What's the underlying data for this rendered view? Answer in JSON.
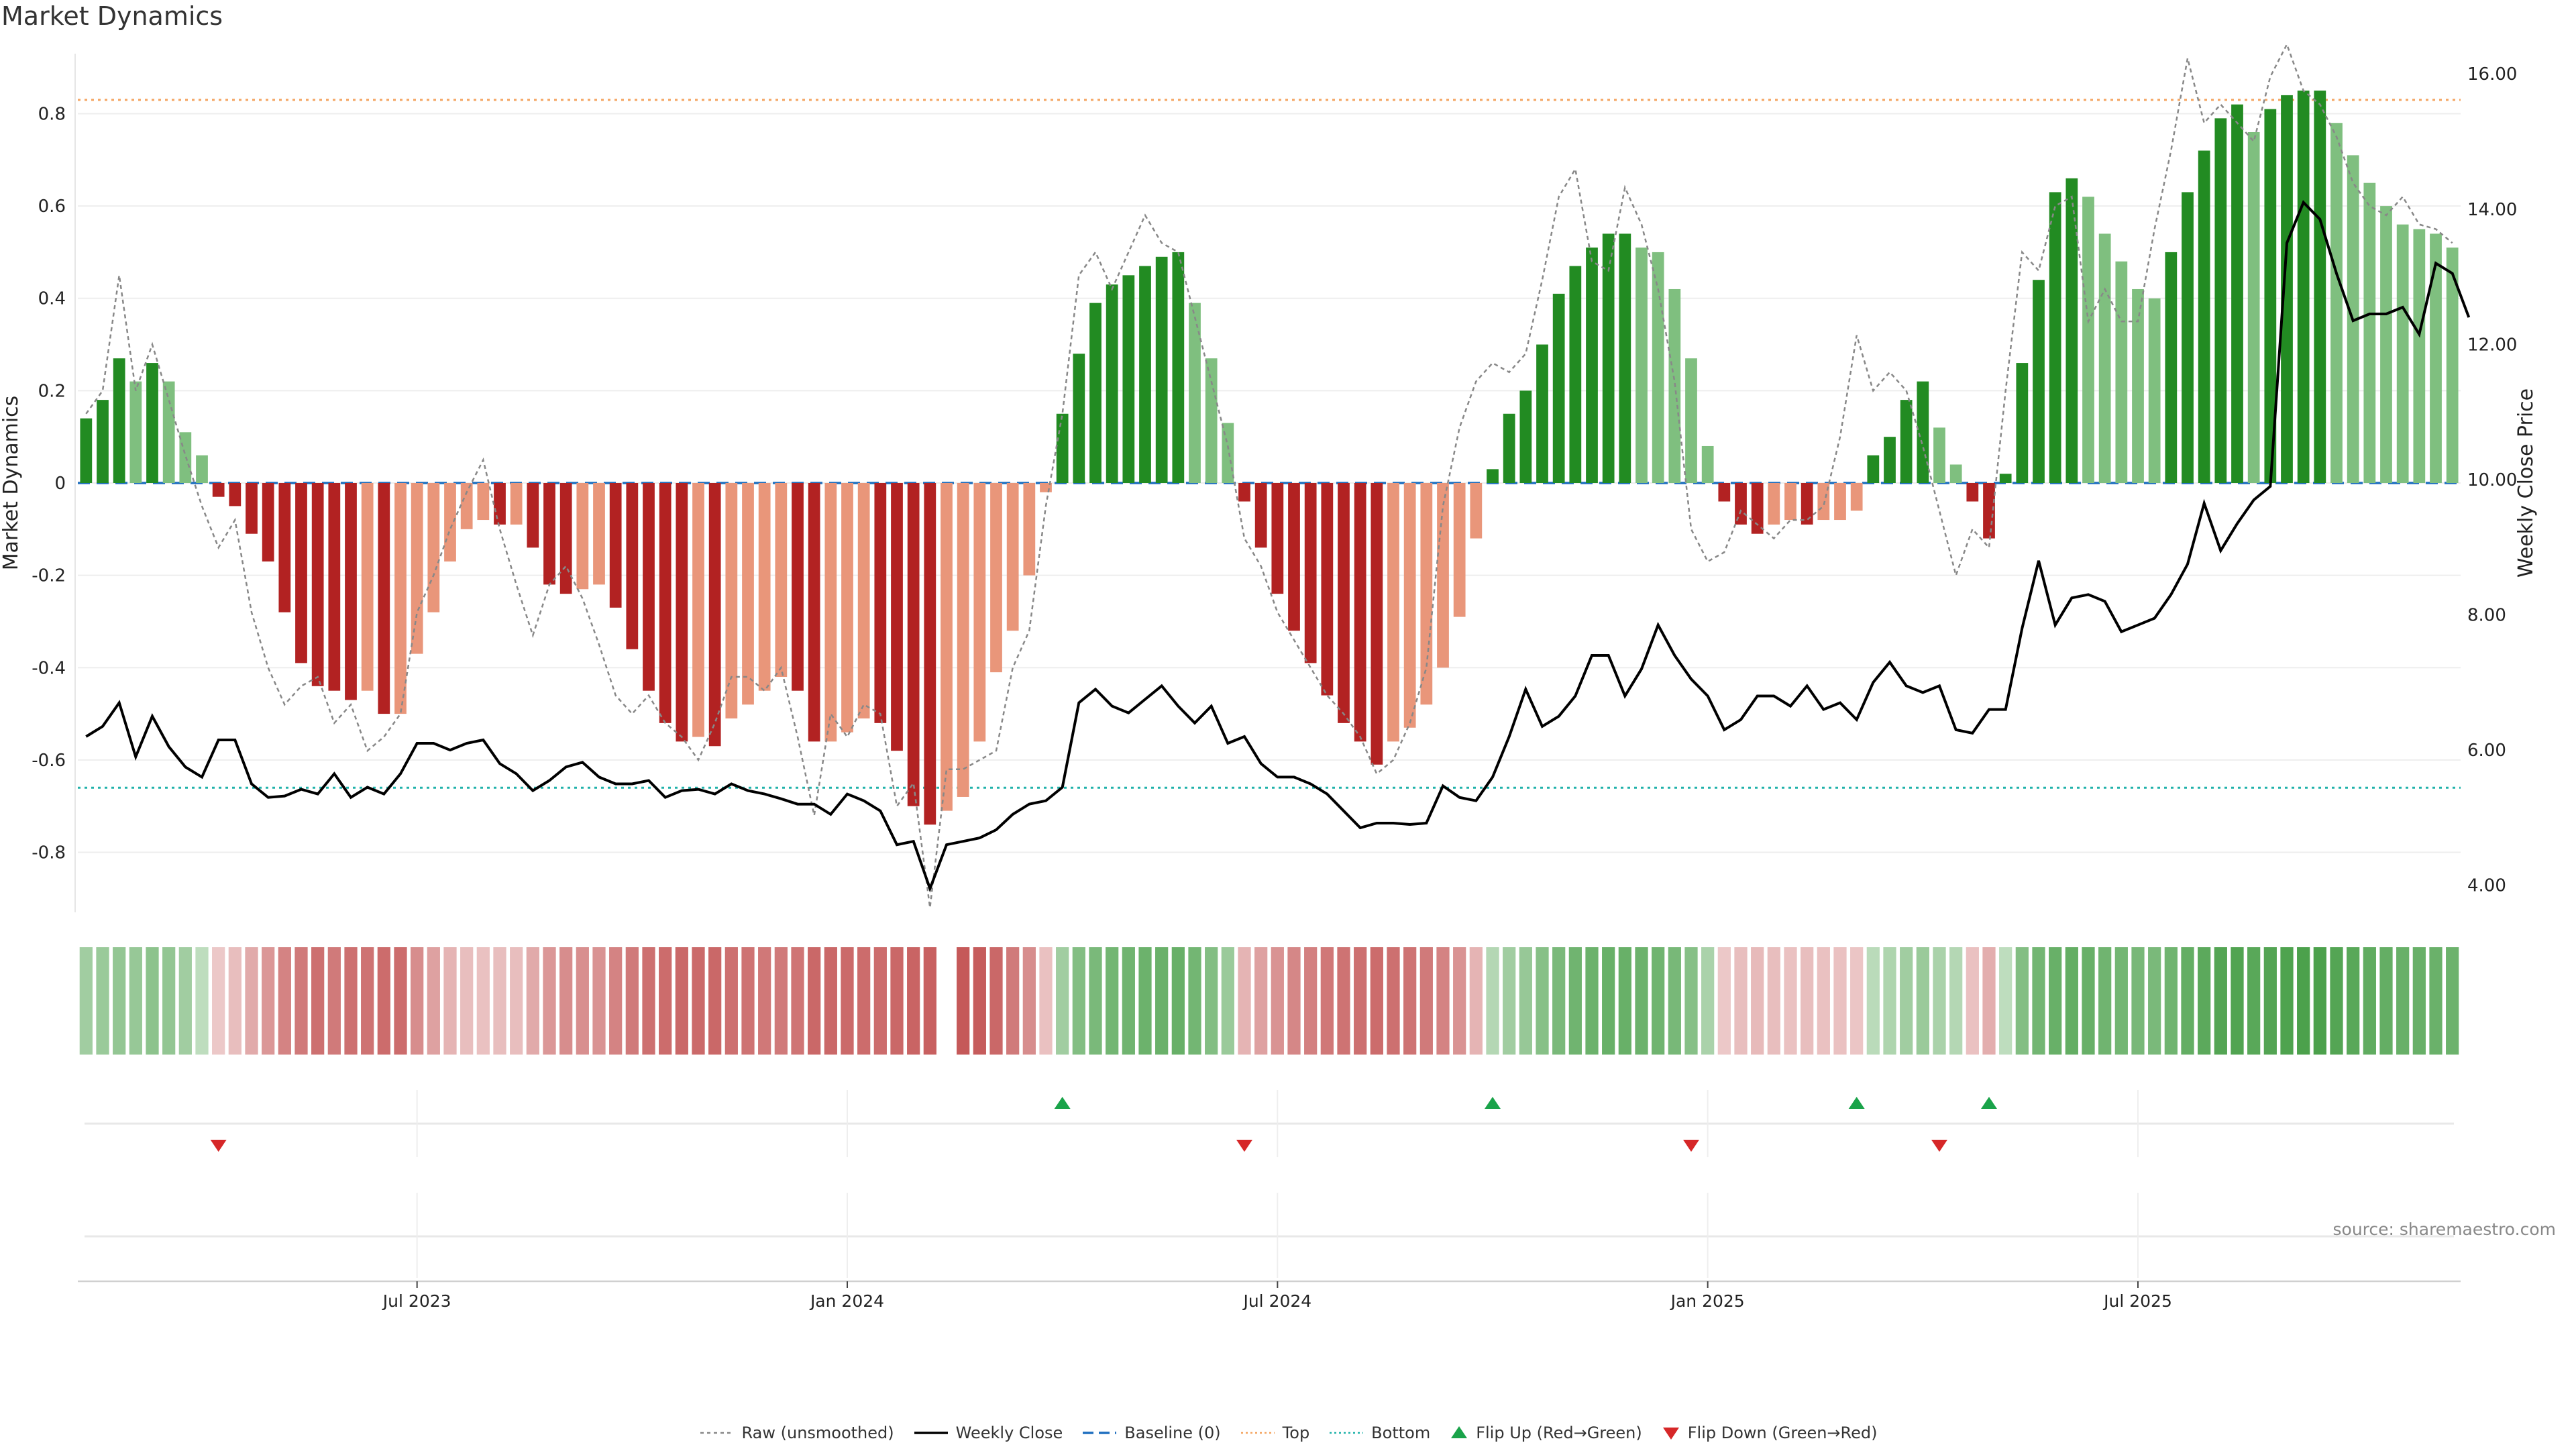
{
  "title": "Market Dynamics",
  "source": "source: sharemaestro.com",
  "colors": {
    "strong_green": "#228b22",
    "light_green": "#7fbf7f",
    "strong_red": "#b22222",
    "light_red": "#e9967a",
    "close": "#000000",
    "raw": "#888888",
    "baseline": "#1f6fbf",
    "top": "#f4a460",
    "bottom": "#20b2aa",
    "flip_up": "#1aa34a",
    "flip_down": "#d62728"
  },
  "chart_data": {
    "type": "bar",
    "start_week": "2023-03-13",
    "x_ticks": [
      {
        "label": "Jul 2023",
        "week": 20
      },
      {
        "label": "Jan 2024",
        "week": 46
      },
      {
        "label": "Jul 2024",
        "week": 72
      },
      {
        "label": "Jan 2025",
        "week": 98
      },
      {
        "label": "Jul 2025",
        "week": 124
      }
    ],
    "left_axis": {
      "label": "Market Dynamics",
      "range": [
        -0.93,
        0.93
      ],
      "ticks": [
        0.8,
        0.6,
        0.4,
        0.2,
        0,
        -0.2,
        -0.4,
        -0.6,
        -0.8
      ]
    },
    "right_axis": {
      "label": "Weekly Close Price",
      "range": [
        3.6,
        16.3
      ],
      "ticks": [
        "16.00",
        "14.00",
        "12.00",
        "10.00",
        "8.00",
        "6.00",
        "4.00"
      ]
    },
    "top_level": 0.83,
    "bottom_level": -0.66,
    "baseline": 0,
    "dynamics": [
      0.14,
      0.18,
      0.27,
      0.22,
      0.26,
      0.22,
      0.11,
      0.06,
      -0.03,
      -0.05,
      -0.11,
      -0.17,
      -0.28,
      -0.39,
      -0.44,
      -0.45,
      -0.47,
      -0.45,
      -0.5,
      -0.5,
      -0.37,
      -0.28,
      -0.17,
      -0.1,
      -0.08,
      -0.09,
      -0.09,
      -0.14,
      -0.22,
      -0.24,
      -0.23,
      -0.22,
      -0.27,
      -0.36,
      -0.45,
      -0.52,
      -0.56,
      -0.55,
      -0.57,
      -0.51,
      -0.48,
      -0.45,
      -0.42,
      -0.45,
      -0.56,
      -0.56,
      -0.54,
      -0.51,
      -0.52,
      -0.58,
      -0.7,
      -0.74,
      -0.71,
      -0.68,
      -0.56,
      -0.41,
      -0.32,
      -0.2,
      -0.02,
      0.15,
      0.28,
      0.39,
      0.43,
      0.45,
      0.47,
      0.49,
      0.5,
      0.39,
      0.27,
      0.13,
      -0.04,
      -0.14,
      -0.24,
      -0.32,
      -0.39,
      -0.46,
      -0.52,
      -0.56,
      -0.61,
      -0.56,
      -0.53,
      -0.48,
      -0.4,
      -0.29,
      -0.12,
      0.03,
      0.15,
      0.2,
      0.3,
      0.41,
      0.47,
      0.51,
      0.54,
      0.54,
      0.51,
      0.5,
      0.42,
      0.27,
      0.08,
      -0.04,
      -0.09,
      -0.11,
      -0.09,
      -0.08,
      -0.09,
      -0.08,
      -0.08,
      -0.06,
      0.06,
      0.1,
      0.18,
      0.22,
      0.12,
      0.04,
      -0.04,
      -0.12,
      0.02,
      0.26,
      0.44,
      0.63,
      0.66,
      0.62,
      0.54,
      0.48,
      0.42,
      0.4,
      0.5,
      0.63,
      0.72,
      0.79,
      0.82,
      0.76,
      0.81,
      0.84,
      0.85,
      0.85,
      0.78,
      0.71,
      0.65,
      0.6,
      0.56,
      0.55,
      0.54,
      0.51
    ],
    "close": [
      6.2,
      6.35,
      6.7,
      5.9,
      6.5,
      6.05,
      5.75,
      5.6,
      6.15,
      6.15,
      5.5,
      5.3,
      5.32,
      5.42,
      5.35,
      5.65,
      5.3,
      5.45,
      5.35,
      5.65,
      6.1,
      6.1,
      6.0,
      6.1,
      6.15,
      5.8,
      5.65,
      5.4,
      5.55,
      5.75,
      5.82,
      5.6,
      5.5,
      5.5,
      5.55,
      5.3,
      5.4,
      5.42,
      5.35,
      5.5,
      5.4,
      5.35,
      5.28,
      5.2,
      5.2,
      5.05,
      5.35,
      5.25,
      5.1,
      4.6,
      4.65,
      3.95,
      4.6,
      4.65,
      4.7,
      4.82,
      5.05,
      5.2,
      5.25,
      5.45,
      6.7,
      6.9,
      6.65,
      6.55,
      6.75,
      6.95,
      6.65,
      6.4,
      6.65,
      6.1,
      6.2,
      5.8,
      5.6,
      5.6,
      5.5,
      5.35,
      5.1,
      4.85,
      4.92,
      4.92,
      4.9,
      4.92,
      5.47,
      5.3,
      5.25,
      5.6,
      6.2,
      6.9,
      6.35,
      6.5,
      6.8,
      7.4,
      7.4,
      6.8,
      7.2,
      7.85,
      7.4,
      7.05,
      6.8,
      6.3,
      6.45,
      6.8,
      6.8,
      6.65,
      6.95,
      6.6,
      6.7,
      6.45,
      7.0,
      7.3,
      6.95,
      6.85,
      6.95,
      6.3,
      6.25,
      6.6,
      6.6,
      7.8,
      8.8,
      7.85,
      8.25,
      8.3,
      8.2,
      7.75,
      7.85,
      7.95,
      8.3,
      8.75,
      9.65,
      8.95,
      9.35,
      9.7,
      9.9,
      13.5,
      14.1,
      13.85,
      13.05,
      12.35,
      12.45,
      12.45,
      12.55,
      12.15,
      13.2,
      13.05,
      12.4
    ],
    "raw": [
      0.15,
      0.2,
      0.45,
      0.2,
      0.3,
      0.18,
      0.06,
      -0.05,
      -0.14,
      -0.08,
      -0.28,
      -0.4,
      -0.48,
      -0.44,
      -0.42,
      -0.52,
      -0.48,
      -0.58,
      -0.55,
      -0.5,
      -0.28,
      -0.2,
      -0.1,
      -0.02,
      0.05,
      -0.1,
      -0.22,
      -0.33,
      -0.22,
      -0.18,
      -0.25,
      -0.35,
      -0.46,
      -0.5,
      -0.46,
      -0.52,
      -0.55,
      -0.6,
      -0.52,
      -0.42,
      -0.42,
      -0.45,
      -0.4,
      -0.55,
      -0.72,
      -0.5,
      -0.55,
      -0.48,
      -0.5,
      -0.7,
      -0.65,
      -0.92,
      -0.62,
      -0.62,
      -0.6,
      -0.58,
      -0.4,
      -0.32,
      -0.05,
      0.15,
      0.45,
      0.5,
      0.42,
      0.5,
      0.58,
      0.52,
      0.5,
      0.36,
      0.22,
      0.08,
      -0.12,
      -0.18,
      -0.28,
      -0.34,
      -0.4,
      -0.46,
      -0.5,
      -0.55,
      -0.63,
      -0.6,
      -0.52,
      -0.4,
      -0.05,
      0.12,
      0.22,
      0.26,
      0.24,
      0.28,
      0.44,
      0.62,
      0.68,
      0.48,
      0.46,
      0.64,
      0.56,
      0.42,
      0.22,
      -0.1,
      -0.17,
      -0.15,
      -0.06,
      -0.09,
      -0.12,
      -0.08,
      -0.08,
      -0.05,
      0.1,
      0.32,
      0.2,
      0.24,
      0.2,
      0.08,
      -0.06,
      -0.2,
      -0.1,
      -0.14,
      0.2,
      0.5,
      0.46,
      0.6,
      0.62,
      0.35,
      0.42,
      0.35,
      0.35,
      0.55,
      0.72,
      0.92,
      0.78,
      0.82,
      0.78,
      0.74,
      0.88,
      0.95,
      0.85,
      0.82,
      0.75,
      0.65,
      0.6,
      0.58,
      0.62,
      0.56,
      0.55,
      0.52
    ],
    "intensity_strip": [
      0.35,
      0.38,
      0.42,
      0.4,
      0.45,
      0.42,
      0.35,
      0.2,
      -0.15,
      -0.2,
      -0.3,
      -0.4,
      -0.5,
      -0.55,
      -0.6,
      -0.55,
      -0.6,
      -0.58,
      -0.62,
      -0.62,
      -0.45,
      -0.35,
      -0.25,
      -0.2,
      -0.18,
      -0.2,
      -0.2,
      -0.3,
      -0.4,
      -0.45,
      -0.44,
      -0.42,
      -0.5,
      -0.55,
      -0.6,
      -0.62,
      -0.64,
      -0.63,
      -0.64,
      -0.6,
      -0.58,
      -0.56,
      -0.55,
      -0.57,
      -0.64,
      -0.64,
      -0.63,
      -0.62,
      -0.62,
      -0.64,
      -0.66,
      -0.68,
      null,
      -0.72,
      -0.7,
      -0.64,
      -0.55,
      -0.45,
      -0.18,
      0.35,
      0.5,
      0.55,
      0.58,
      0.6,
      0.62,
      0.63,
      0.64,
      0.58,
      0.5,
      0.38,
      -0.25,
      -0.35,
      -0.42,
      -0.48,
      -0.52,
      -0.56,
      -0.58,
      -0.6,
      -0.62,
      -0.6,
      -0.58,
      -0.55,
      -0.5,
      -0.42,
      -0.25,
      0.25,
      0.35,
      0.4,
      0.48,
      0.55,
      0.6,
      0.62,
      0.64,
      0.64,
      0.62,
      0.6,
      0.56,
      0.48,
      0.3,
      -0.15,
      -0.2,
      -0.22,
      -0.2,
      -0.18,
      -0.2,
      -0.18,
      -0.18,
      -0.16,
      0.22,
      0.28,
      0.35,
      0.38,
      0.3,
      0.25,
      -0.18,
      -0.28,
      0.2,
      0.5,
      0.58,
      0.64,
      0.66,
      0.64,
      0.6,
      0.58,
      0.56,
      0.55,
      0.6,
      0.66,
      0.7,
      0.74,
      0.76,
      0.72,
      0.75,
      0.77,
      0.78,
      0.78,
      0.74,
      0.72,
      0.68,
      0.66,
      0.64,
      0.64,
      0.63,
      0.62
    ],
    "flip_up_weeks": [
      59,
      85,
      107,
      115
    ],
    "flip_down_weeks": [
      8,
      70,
      97,
      112
    ],
    "legend": [
      "Raw (unsmoothed)",
      "Weekly Close",
      "Baseline (0)",
      "Top",
      "Bottom",
      "Flip Up (Red→Green)",
      "Flip Down (Green→Red)"
    ]
  }
}
